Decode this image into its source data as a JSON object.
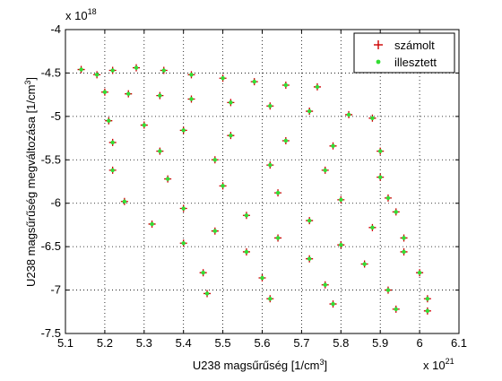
{
  "chart_data": {
    "type": "scatter",
    "title": "",
    "xlabel": "U238  magsűrűség [1/cm",
    "xlabel_sup": "3",
    "xlabel_tail": "]",
    "ylabel": "U238  magsűrűség megváltozása [1/cm",
    "ylabel_sup": "3",
    "ylabel_tail": "]",
    "x_multiplier": "x 10",
    "x_multiplier_exp": "21",
    "y_multiplier": "x 10",
    "y_multiplier_exp": "18",
    "xlim": [
      5.1,
      6.1
    ],
    "ylim": [
      -7.5,
      -4.0
    ],
    "xticks": [
      5.1,
      5.2,
      5.3,
      5.4,
      5.5,
      5.6,
      5.7,
      5.8,
      5.9,
      6.0,
      6.1
    ],
    "xtick_labels": [
      "5.1",
      "5.2",
      "5.3",
      "5.4",
      "5.5",
      "5.6",
      "5.7",
      "5.8",
      "5.9",
      "6",
      "6.1"
    ],
    "yticks": [
      -4.0,
      -4.5,
      -5.0,
      -5.5,
      -6.0,
      -6.5,
      -7.0,
      -7.5
    ],
    "ytick_labels": [
      "-4",
      "-4.5",
      "-5",
      "-5.5",
      "-6",
      "-6.5",
      "-7",
      "-7.5"
    ],
    "grid": true,
    "legend_position": "top-right",
    "series": [
      {
        "name": "számolt",
        "marker": "plus",
        "color": "#cc0000",
        "points": [
          [
            5.14,
            -4.46
          ],
          [
            5.18,
            -4.52
          ],
          [
            5.22,
            -4.47
          ],
          [
            5.28,
            -4.44
          ],
          [
            5.35,
            -4.47
          ],
          [
            5.42,
            -4.52
          ],
          [
            5.5,
            -4.56
          ],
          [
            5.58,
            -4.6
          ],
          [
            5.66,
            -4.64
          ],
          [
            5.74,
            -4.66
          ],
          [
            5.2,
            -4.72
          ],
          [
            5.26,
            -4.74
          ],
          [
            5.34,
            -4.76
          ],
          [
            5.42,
            -4.8
          ],
          [
            5.52,
            -4.84
          ],
          [
            5.62,
            -4.88
          ],
          [
            5.72,
            -4.94
          ],
          [
            5.82,
            -4.98
          ],
          [
            5.88,
            -5.02
          ],
          [
            5.21,
            -5.05
          ],
          [
            5.3,
            -5.1
          ],
          [
            5.4,
            -5.16
          ],
          [
            5.52,
            -5.22
          ],
          [
            5.66,
            -5.28
          ],
          [
            5.78,
            -5.34
          ],
          [
            5.9,
            -5.4
          ],
          [
            5.22,
            -5.3
          ],
          [
            5.34,
            -5.4
          ],
          [
            5.48,
            -5.5
          ],
          [
            5.62,
            -5.56
          ],
          [
            5.76,
            -5.62
          ],
          [
            5.9,
            -5.7
          ],
          [
            5.92,
            -5.94
          ],
          [
            5.22,
            -5.62
          ],
          [
            5.36,
            -5.72
          ],
          [
            5.5,
            -5.8
          ],
          [
            5.64,
            -5.88
          ],
          [
            5.8,
            -5.96
          ],
          [
            5.94,
            -6.1
          ],
          [
            5.25,
            -5.98
          ],
          [
            5.4,
            -6.06
          ],
          [
            5.56,
            -6.14
          ],
          [
            5.72,
            -6.2
          ],
          [
            5.88,
            -6.28
          ],
          [
            5.96,
            -6.4
          ],
          [
            5.32,
            -6.24
          ],
          [
            5.48,
            -6.32
          ],
          [
            5.64,
            -6.4
          ],
          [
            5.8,
            -6.48
          ],
          [
            5.96,
            -6.56
          ],
          [
            5.4,
            -6.46
          ],
          [
            5.56,
            -6.56
          ],
          [
            5.72,
            -6.64
          ],
          [
            5.86,
            -6.7
          ],
          [
            6.0,
            -6.8
          ],
          [
            5.45,
            -6.8
          ],
          [
            5.6,
            -6.86
          ],
          [
            5.76,
            -6.94
          ],
          [
            5.92,
            -7.0
          ],
          [
            6.02,
            -7.1
          ],
          [
            5.46,
            -7.04
          ],
          [
            5.62,
            -7.1
          ],
          [
            5.78,
            -7.16
          ],
          [
            5.94,
            -7.22
          ],
          [
            6.02,
            -7.24
          ]
        ]
      },
      {
        "name": "illesztett",
        "marker": "dot",
        "color": "#33dd33",
        "points": [
          [
            5.14,
            -4.46
          ],
          [
            5.18,
            -4.52
          ],
          [
            5.22,
            -4.47
          ],
          [
            5.28,
            -4.44
          ],
          [
            5.35,
            -4.47
          ],
          [
            5.42,
            -4.52
          ],
          [
            5.5,
            -4.56
          ],
          [
            5.58,
            -4.6
          ],
          [
            5.66,
            -4.64
          ],
          [
            5.74,
            -4.66
          ],
          [
            5.2,
            -4.72
          ],
          [
            5.26,
            -4.74
          ],
          [
            5.34,
            -4.76
          ],
          [
            5.42,
            -4.8
          ],
          [
            5.52,
            -4.84
          ],
          [
            5.62,
            -4.88
          ],
          [
            5.72,
            -4.94
          ],
          [
            5.82,
            -4.98
          ],
          [
            5.88,
            -5.02
          ],
          [
            5.21,
            -5.05
          ],
          [
            5.3,
            -5.1
          ],
          [
            5.4,
            -5.16
          ],
          [
            5.52,
            -5.22
          ],
          [
            5.66,
            -5.28
          ],
          [
            5.78,
            -5.34
          ],
          [
            5.9,
            -5.4
          ],
          [
            5.22,
            -5.3
          ],
          [
            5.34,
            -5.4
          ],
          [
            5.48,
            -5.5
          ],
          [
            5.62,
            -5.56
          ],
          [
            5.76,
            -5.62
          ],
          [
            5.9,
            -5.7
          ],
          [
            5.92,
            -5.94
          ],
          [
            5.22,
            -5.62
          ],
          [
            5.36,
            -5.72
          ],
          [
            5.5,
            -5.8
          ],
          [
            5.64,
            -5.88
          ],
          [
            5.8,
            -5.96
          ],
          [
            5.94,
            -6.1
          ],
          [
            5.25,
            -5.98
          ],
          [
            5.4,
            -6.06
          ],
          [
            5.56,
            -6.14
          ],
          [
            5.72,
            -6.2
          ],
          [
            5.88,
            -6.28
          ],
          [
            5.96,
            -6.4
          ],
          [
            5.32,
            -6.24
          ],
          [
            5.48,
            -6.32
          ],
          [
            5.64,
            -6.4
          ],
          [
            5.8,
            -6.48
          ],
          [
            5.96,
            -6.56
          ],
          [
            5.4,
            -6.46
          ],
          [
            5.56,
            -6.56
          ],
          [
            5.72,
            -6.64
          ],
          [
            5.86,
            -6.7
          ],
          [
            6.0,
            -6.8
          ],
          [
            5.45,
            -6.8
          ],
          [
            5.6,
            -6.86
          ],
          [
            5.76,
            -6.94
          ],
          [
            5.92,
            -7.0
          ],
          [
            6.02,
            -7.1
          ],
          [
            5.46,
            -7.04
          ],
          [
            5.62,
            -7.1
          ],
          [
            5.78,
            -7.16
          ],
          [
            5.94,
            -7.22
          ],
          [
            6.02,
            -7.24
          ]
        ]
      }
    ]
  }
}
